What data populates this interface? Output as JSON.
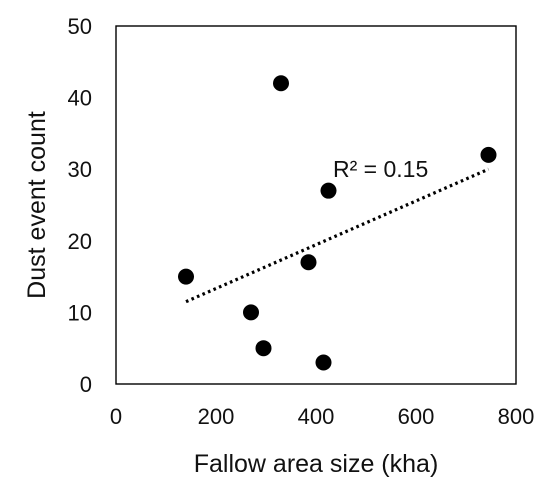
{
  "chart_data": {
    "type": "scatter",
    "title": "",
    "xlabel": "Fallow area size (kha)",
    "ylabel": "Dust event count",
    "xlim": [
      0,
      800
    ],
    "ylim": [
      0,
      50
    ],
    "x_ticks": [
      0,
      200,
      400,
      600,
      800
    ],
    "y_ticks": [
      0,
      10,
      20,
      30,
      40,
      50
    ],
    "grid": false,
    "legend": "none",
    "series": [
      {
        "points": [
          {
            "x": 140,
            "y": 15
          },
          {
            "x": 270,
            "y": 10
          },
          {
            "x": 295,
            "y": 5
          },
          {
            "x": 330,
            "y": 42
          },
          {
            "x": 385,
            "y": 17
          },
          {
            "x": 415,
            "y": 3
          },
          {
            "x": 425,
            "y": 27
          },
          {
            "x": 745,
            "y": 32
          }
        ]
      }
    ],
    "trendline": {
      "type": "linear",
      "style": "dotted",
      "x_range": [
        140,
        745
      ],
      "y_values": [
        11.5,
        30
      ],
      "label": "R² = 0.15"
    },
    "colors": {
      "marker": "#000000",
      "axis": "#000000",
      "trendline": "#000000"
    }
  }
}
